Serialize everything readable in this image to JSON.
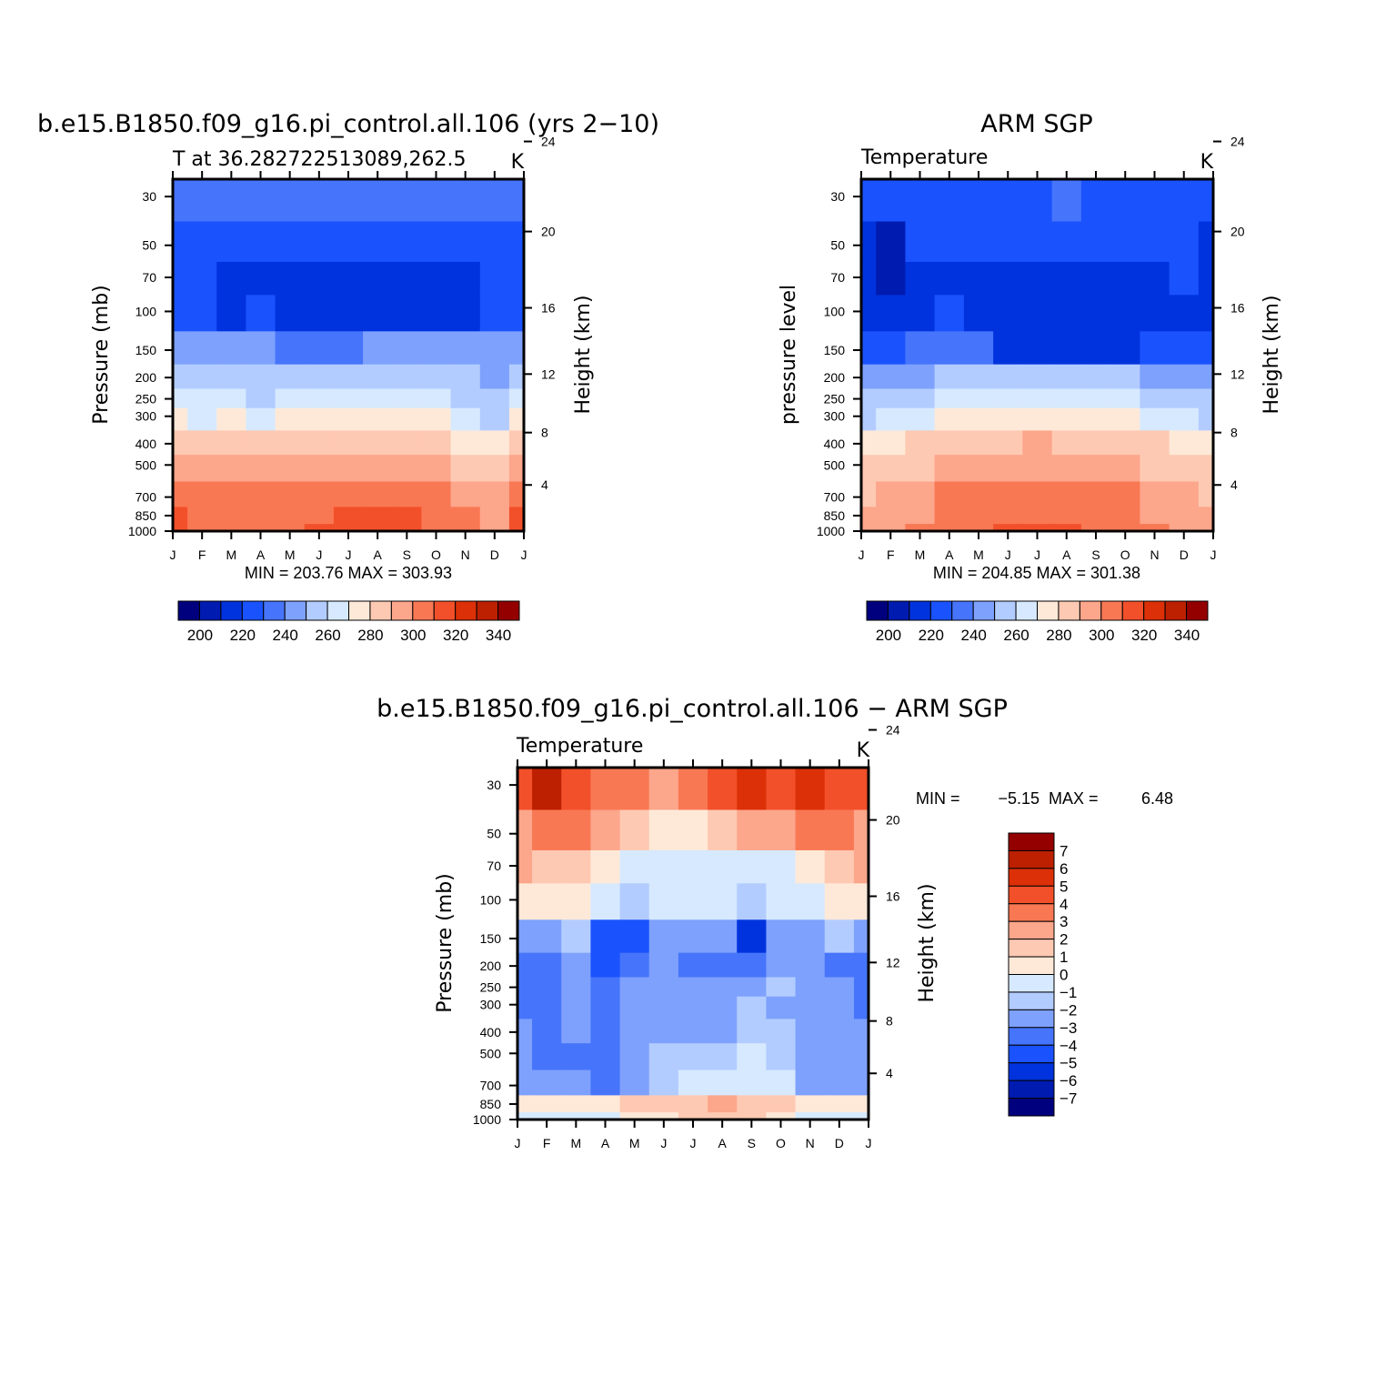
{
  "colors": {
    "scale": [
      "#00007f",
      "#001bb0",
      "#0033dd",
      "#1a52fd",
      "#4674fb",
      "#7ea1fd",
      "#b3ccff",
      "#d6e9ff",
      "#fee9d8",
      "#fec9b2",
      "#fca68b",
      "#f97854",
      "#f2502a",
      "#dc3008",
      "#bc2000",
      "#940000"
    ]
  },
  "chart_data": [
    {
      "type": "heatmap",
      "id": "model",
      "title": "b.e15.B1850.f09_g16.pi_control.all.106 (yrs 2−10)",
      "subtitle_left": "T at 36.282722513089,262.5",
      "subtitle_right": "K",
      "ylabel": "Pressure (mb)",
      "ylabel_right": "Height (km)",
      "x_categories": [
        "J",
        "F",
        "M",
        "A",
        "M",
        "J",
        "J",
        "A",
        "S",
        "O",
        "N",
        "D",
        "J"
      ],
      "y_pressure_ticks": [
        "30",
        "50",
        "70",
        "100",
        "150",
        "200",
        "250",
        "300",
        "400",
        "500",
        "700",
        "850",
        "1000"
      ],
      "y_height_ticks": [
        "24",
        "20",
        "16",
        "12",
        "8",
        "4"
      ],
      "ylim": [
        1000,
        25
      ],
      "yscale": "log",
      "stats": "MIN = 203.76  MAX = 303.93",
      "colorbar": {
        "labels": [
          "200",
          "220",
          "240",
          "260",
          "280",
          "300",
          "320",
          "340"
        ],
        "levels": [
          195,
          200,
          205,
          210,
          220,
          230,
          240,
          250,
          260,
          270,
          280,
          290,
          300,
          310,
          320,
          330,
          340
        ]
      },
      "levels_hpa": [
        1000,
        850,
        700,
        500,
        400,
        300,
        250,
        200,
        150,
        100,
        70,
        50,
        30,
        25
      ],
      "values": [
        [
          302,
          300,
          297,
          287,
          277,
          263,
          256,
          247,
          233,
          217,
          213,
          217,
          221,
          221
        ],
        [
          296,
          294,
          291,
          281,
          271,
          258,
          250,
          243,
          232,
          214,
          212,
          218,
          222,
          222
        ],
        [
          299,
          297,
          294,
          284,
          274,
          260,
          252,
          245,
          231,
          209,
          209,
          217,
          223,
          223
        ],
        [
          295,
          293,
          290,
          280,
          270,
          257,
          249,
          243,
          231,
          210,
          206,
          215,
          224,
          224
        ],
        [
          298,
          296,
          293,
          283,
          273,
          260,
          252,
          244,
          229,
          207,
          206,
          215,
          226,
          226
        ],
        [
          301,
          299,
          296,
          286,
          276,
          263,
          255,
          246,
          229,
          207,
          205,
          214,
          227,
          227
        ],
        [
          303,
          301,
          298,
          288,
          278,
          265,
          257,
          248,
          229,
          208,
          205,
          213,
          228,
          228
        ],
        [
          304,
          302,
          299,
          289,
          279,
          266,
          258,
          249,
          230,
          208,
          205,
          213,
          228,
          228
        ],
        [
          302,
          300,
          297,
          287,
          277,
          264,
          256,
          247,
          230,
          208,
          206,
          213,
          227,
          227
        ],
        [
          298,
          296,
          293,
          283,
          273,
          260,
          252,
          245,
          232,
          208,
          207,
          214,
          225,
          225
        ],
        [
          293,
          291,
          288,
          278,
          268,
          255,
          247,
          242,
          232,
          209,
          208,
          215,
          224,
          224
        ],
        [
          287,
          285,
          282,
          272,
          262,
          249,
          241,
          238,
          233,
          216,
          212,
          217,
          222,
          222
        ],
        [
          302,
          300,
          297,
          287,
          277,
          263,
          256,
          247,
          233,
          217,
          213,
          217,
          221,
          221
        ]
      ]
    },
    {
      "type": "heatmap",
      "id": "obs",
      "title": "ARM SGP",
      "subtitle_left": "Temperature",
      "subtitle_right": "K",
      "ylabel": "pressure level",
      "ylabel_right": "Height (km)",
      "x_categories": [
        "J",
        "F",
        "M",
        "A",
        "M",
        "J",
        "J",
        "A",
        "S",
        "O",
        "N",
        "D",
        "J"
      ],
      "y_pressure_ticks": [
        "30",
        "50",
        "70",
        "100",
        "150",
        "200",
        "250",
        "300",
        "400",
        "500",
        "700",
        "850",
        "1000"
      ],
      "y_height_ticks": [
        "24",
        "20",
        "16",
        "12",
        "8",
        "4"
      ],
      "ylim": [
        1000,
        25
      ],
      "yscale": "log",
      "stats": "MIN = 204.85  MAX = 301.38",
      "colorbar": {
        "labels": [
          "200",
          "220",
          "240",
          "260",
          "280",
          "300",
          "320",
          "340"
        ],
        "levels": [
          195,
          200,
          205,
          210,
          220,
          230,
          240,
          250,
          260,
          270,
          280,
          290,
          300,
          310,
          320,
          330,
          340
        ]
      },
      "levels_hpa": [
        1000,
        850,
        700,
        500,
        400,
        300,
        250,
        200,
        150,
        100,
        70,
        50,
        30,
        25
      ],
      "values": [
        [
          283,
          281,
          278,
          270,
          263,
          249,
          241,
          234,
          218,
          209,
          206,
          205,
          214,
          214
        ],
        [
          286,
          284,
          281,
          273,
          266,
          252,
          244,
          236,
          219,
          206,
          204,
          204,
          215,
          215
        ],
        [
          291,
          289,
          286,
          278,
          271,
          257,
          249,
          239,
          220,
          209,
          206,
          214,
          216,
          216
        ],
        [
          295,
          293,
          290,
          282,
          275,
          261,
          253,
          241,
          222,
          213,
          206,
          215,
          217,
          217
        ],
        [
          298,
          296,
          293,
          284,
          277,
          263,
          255,
          242,
          224,
          207,
          208,
          216,
          218,
          218
        ],
        [
          300,
          298,
          295,
          286,
          279,
          265,
          257,
          243,
          209,
          207,
          209,
          216,
          219,
          219
        ],
        [
          301,
          299,
          296,
          287,
          280,
          266,
          258,
          244,
          208,
          207,
          209,
          217,
          219,
          219
        ],
        [
          300,
          298,
          295,
          286,
          279,
          265,
          257,
          243,
          208,
          207,
          209,
          217,
          220,
          220
        ],
        [
          298,
          296,
          293,
          284,
          277,
          263,
          255,
          242,
          209,
          207,
          209,
          217,
          219,
          219
        ],
        [
          295,
          293,
          290,
          281,
          274,
          260,
          252,
          240,
          209,
          207,
          208,
          216,
          218,
          218
        ],
        [
          291,
          289,
          286,
          277,
          270,
          256,
          248,
          237,
          218,
          208,
          207,
          215,
          216,
          216
        ],
        [
          287,
          285,
          282,
          274,
          267,
          253,
          245,
          234,
          219,
          209,
          210,
          216,
          215,
          215
        ],
        [
          283,
          281,
          278,
          270,
          263,
          249,
          241,
          234,
          218,
          209,
          206,
          205,
          214,
          214
        ]
      ]
    },
    {
      "type": "heatmap",
      "id": "diff",
      "title": "b.e15.B1850.f09_g16.pi_control.all.106 − ARM SGP",
      "subtitle_left": "Temperature",
      "subtitle_right": "K",
      "ylabel": "Pressure (mb)",
      "ylabel_right": "Height (km)",
      "x_categories": [
        "J",
        "F",
        "M",
        "A",
        "M",
        "J",
        "J",
        "A",
        "S",
        "O",
        "N",
        "D",
        "J"
      ],
      "y_pressure_ticks": [
        "30",
        "50",
        "70",
        "100",
        "150",
        "200",
        "250",
        "300",
        "400",
        "500",
        "700",
        "850",
        "1000"
      ],
      "y_height_ticks": [
        "24",
        "20",
        "16",
        "12",
        "8",
        "4"
      ],
      "ylim": [
        1000,
        25
      ],
      "yscale": "log",
      "stats_min_label": "MIN =",
      "stats_min": "−5.15",
      "stats_max_label": "MAX =",
      "stats_max": "6.48",
      "colorbar": {
        "labels": [
          "7",
          "6",
          "5",
          "4",
          "3",
          "2",
          "1",
          "0",
          "−1",
          "−2",
          "−3",
          "−4",
          "−5",
          "−6",
          "−7"
        ],
        "levels": [
          -8,
          -7,
          -6,
          -5,
          -4,
          -3,
          -2,
          -1,
          0,
          1,
          2,
          3,
          4,
          5,
          6,
          7,
          8
        ]
      },
      "levels_hpa": [
        1000,
        850,
        700,
        500,
        400,
        300,
        250,
        200,
        150,
        100,
        70,
        50,
        30,
        25
      ],
      "values": [
        [
          -0.3,
          0.2,
          -2.5,
          -3.0,
          -3.0,
          -3.2,
          -3.2,
          -3.5,
          -2.5,
          0.2,
          2.0,
          2.5,
          4.5,
          4.5
        ],
        [
          -0.4,
          0.2,
          -2.6,
          -3.2,
          -3.2,
          -3.8,
          -3.5,
          -3.5,
          -2.5,
          0.2,
          1.5,
          3.5,
          6.0,
          6.5
        ],
        [
          -0.3,
          0.3,
          -2.5,
          -3.5,
          -2.8,
          -2.2,
          -2.5,
          -3.0,
          -2.0,
          0.5,
          1.0,
          3.0,
          4.5,
          4.5
        ],
        [
          -0.3,
          0.5,
          -3.5,
          -3.5,
          -3.5,
          -3.8,
          -3.8,
          -4.5,
          -4.2,
          -0.5,
          0.3,
          2.0,
          3.5,
          3.5
        ],
        [
          0.2,
          1.0,
          -2.5,
          -2.5,
          -2.5,
          -2.5,
          -3.0,
          -3.2,
          -4.5,
          -1.5,
          -0.5,
          1.0,
          3.0,
          3.0
        ],
        [
          0.5,
          1.2,
          -1.5,
          -1.8,
          -2.5,
          -2.5,
          -2.5,
          -2.8,
          -2.5,
          -1.0,
          -0.5,
          0.5,
          2.5,
          2.5
        ],
        [
          1.0,
          1.8,
          -0.5,
          -1.5,
          -2.5,
          -3.0,
          -3.0,
          -4.0,
          -2.2,
          -0.8,
          -0.3,
          0.5,
          3.0,
          3.0
        ],
        [
          1.2,
          2.0,
          -0.5,
          -1.5,
          -2.5,
          -3.0,
          -3.0,
          -3.2,
          -2.5,
          -1.0,
          -0.3,
          1.5,
          4.0,
          4.0
        ],
        [
          1.0,
          1.5,
          -0.3,
          -0.5,
          -1.5,
          -1.5,
          -2.5,
          -3.5,
          -5.1,
          -1.2,
          -0.5,
          2.0,
          5.0,
          5.0
        ],
        [
          0.5,
          1.2,
          -0.3,
          -1.2,
          -2.0,
          -2.5,
          -2.0,
          -2.2,
          -2.5,
          -1.0,
          -0.2,
          2.5,
          4.0,
          4.0
        ],
        [
          -0.2,
          0.3,
          -2.5,
          -2.5,
          -2.5,
          -2.5,
          -2.2,
          -2.5,
          -2.2,
          -0.5,
          0.5,
          3.5,
          5.5,
          5.5
        ],
        [
          -0.3,
          0.2,
          -2.5,
          -2.5,
          -2.5,
          -2.5,
          -2.5,
          -4.0,
          -2.0,
          0.3,
          1.5,
          3.0,
          4.5,
          4.5
        ],
        [
          -0.3,
          0.2,
          -2.5,
          -3.0,
          -3.0,
          -3.2,
          -3.2,
          -3.5,
          -2.5,
          0.2,
          2.0,
          2.5,
          4.5,
          4.5
        ]
      ]
    }
  ]
}
